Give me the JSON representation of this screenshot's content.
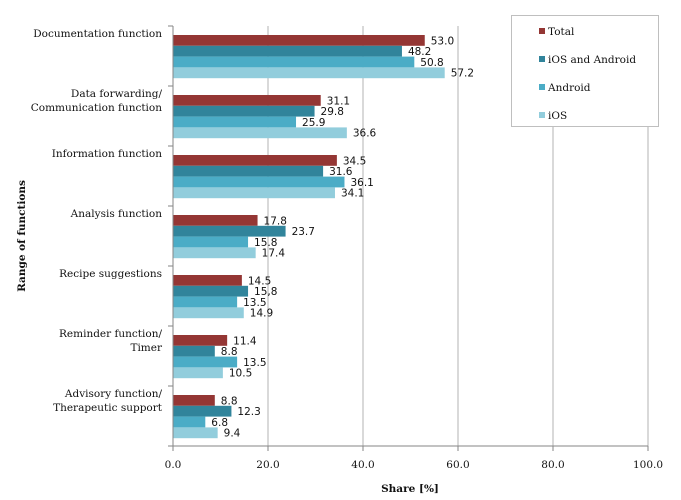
{
  "chart_data": {
    "type": "bar",
    "orientation": "horizontal",
    "title": "",
    "xlabel": "Share [%]",
    "ylabel": "Range of functions",
    "xlim": [
      0,
      100
    ],
    "x_ticks": [
      "0.0",
      "20.0",
      "40.0",
      "60.0",
      "80.0",
      "100.0"
    ],
    "x_tick_values": [
      0,
      20,
      40,
      60,
      80,
      100
    ],
    "grid": "vertical",
    "legend_position": "top-right",
    "categories": [
      [
        "Documentation function"
      ],
      [
        "Data forwarding/",
        "Communication function"
      ],
      [
        "Information function"
      ],
      [
        "Analysis function"
      ],
      [
        "Recipe suggestions"
      ],
      [
        "Reminder function/",
        "Timer"
      ],
      [
        "Advisory function/",
        "Therapeutic support"
      ]
    ],
    "series": [
      {
        "name": "Total",
        "color": "#943634",
        "values": [
          53.0,
          31.1,
          34.5,
          17.8,
          14.5,
          11.4,
          8.8
        ],
        "labels": [
          "53.0",
          "31.1",
          "34.5",
          "17.8",
          "14.5",
          "11.4",
          "8.8"
        ]
      },
      {
        "name": "iOS and Android",
        "color": "#31849B",
        "values": [
          48.2,
          29.8,
          31.6,
          23.7,
          15.8,
          8.8,
          12.3
        ],
        "labels": [
          "48.2",
          "29.8",
          "31.6",
          "23.7",
          "15,8",
          "8.8",
          "12.3"
        ]
      },
      {
        "name": "Android",
        "color": "#4BACC6",
        "values": [
          50.8,
          25.9,
          36.1,
          15.8,
          13.5,
          13.5,
          6.8
        ],
        "labels": [
          "50.8",
          "25.9",
          "36.1",
          "15.8",
          "13.5",
          "13.5",
          "6.8"
        ]
      },
      {
        "name": "iOS",
        "color": "#92CDDC",
        "values": [
          57.2,
          36.6,
          34.1,
          17.4,
          14.9,
          10.5,
          9.4
        ],
        "labels": [
          "57.2",
          "36.6",
          "34.1",
          "17.4",
          "14.9",
          "10.5",
          "9.4"
        ]
      }
    ]
  }
}
